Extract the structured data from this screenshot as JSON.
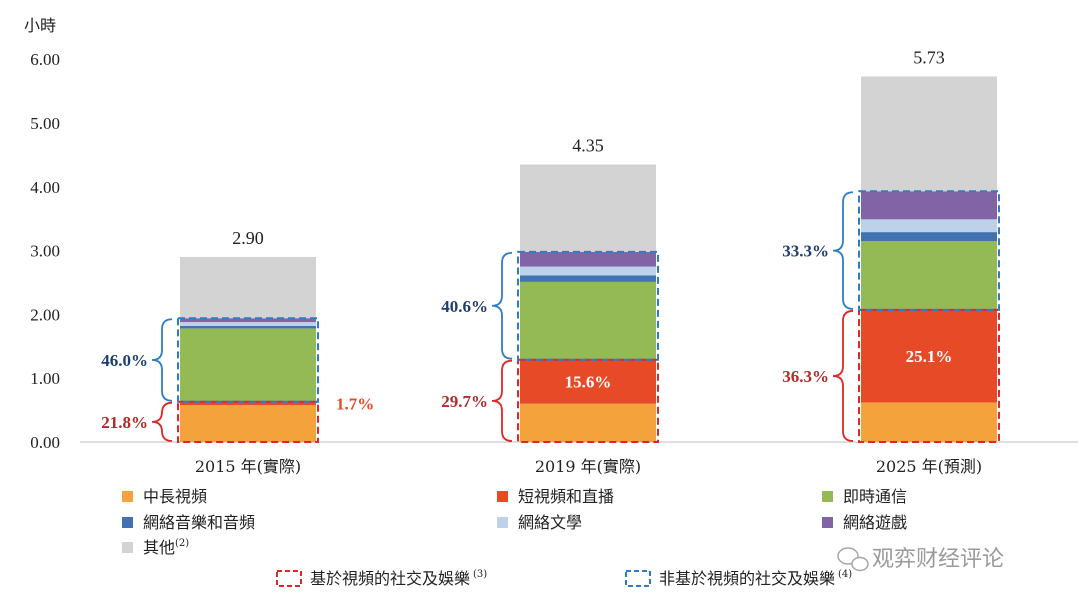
{
  "chart_data": {
    "type": "bar",
    "stacked": true,
    "ylabel": "小時",
    "ylim": [
      0,
      6
    ],
    "yticks": [
      "0.00",
      "1.00",
      "2.00",
      "3.00",
      "4.00",
      "5.00",
      "6.00"
    ],
    "categories": [
      "2015 年(實際)",
      "2019 年(實際)",
      "2025 年(預測)"
    ],
    "totals": [
      2.9,
      4.35,
      5.73
    ],
    "total_labels": [
      "2.90",
      "4.35",
      "5.73"
    ],
    "series": [
      {
        "name": "中長視頻",
        "color": "#F4A23C",
        "values": [
          0.58,
          0.6,
          0.62
        ]
      },
      {
        "name": "短視頻和直播",
        "color": "#E64A27",
        "values": [
          0.05,
          0.69,
          1.45
        ]
      },
      {
        "name": "即時通信",
        "color": "#94BA56",
        "values": [
          1.15,
          1.22,
          1.08
        ]
      },
      {
        "name": "網絡音樂和音頻",
        "color": "#4372B3",
        "values": [
          0.04,
          0.1,
          0.14
        ]
      },
      {
        "name": "網絡文學",
        "color": "#BED1EA",
        "values": [
          0.06,
          0.14,
          0.2
        ]
      },
      {
        "name": "網絡遊戲",
        "color": "#8263A5",
        "values": [
          0.06,
          0.23,
          0.44
        ]
      },
      {
        "name": "其他",
        "color": "#D3D3D3",
        "values": [
          0.96,
          1.37,
          1.8
        ]
      }
    ],
    "series_sup": [
      "",
      "",
      "",
      "",
      "",
      "",
      "(2)"
    ],
    "inner_labels": [
      "",
      "15.6%",
      "25.1%"
    ],
    "groups": [
      {
        "name": "基於視頻的社交及娛樂",
        "sup": "(3)",
        "color": "#E02626",
        "text_color": "#B22A2A",
        "labels": [
          "21.8%",
          "29.7%",
          "36.3%"
        ]
      },
      {
        "name": "非基於視頻的社交及娛樂",
        "sup": "(4)",
        "color": "#2D7DC3",
        "text_color": "#1F3E70",
        "labels": [
          "46.0%",
          "40.6%",
          "33.3%"
        ]
      }
    ],
    "side_note": {
      "label": "1.7%",
      "color": "#E64A27"
    },
    "legend_position": "bottom",
    "grid": false
  },
  "watermark": "观弈财经评论"
}
